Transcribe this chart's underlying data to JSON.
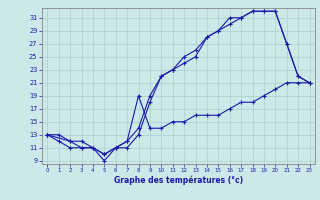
{
  "xlabel": "Graphe des températures (°c)",
  "background_color": "#cce8e8",
  "line_color": "#1a1aaa",
  "xlim": [
    -0.5,
    23.5
  ],
  "ylim": [
    8.5,
    32.5
  ],
  "xticks": [
    0,
    1,
    2,
    3,
    4,
    5,
    6,
    7,
    8,
    9,
    10,
    11,
    12,
    13,
    14,
    15,
    16,
    17,
    18,
    19,
    20,
    21,
    22,
    23
  ],
  "yticks": [
    9,
    11,
    13,
    15,
    17,
    19,
    21,
    23,
    25,
    27,
    29,
    31
  ],
  "line1_x": [
    0,
    1,
    2,
    3,
    4,
    5,
    6,
    7,
    8,
    9,
    10,
    11,
    12,
    13,
    14,
    15,
    16,
    17,
    18,
    19,
    20,
    21,
    22,
    23
  ],
  "line1_y": [
    13,
    13,
    12,
    12,
    11,
    10,
    11,
    12,
    14,
    19,
    22,
    23,
    25,
    26,
    28,
    29,
    30,
    31,
    32,
    32,
    32,
    27,
    22,
    21
  ],
  "line2_x": [
    0,
    1,
    2,
    3,
    4,
    5,
    6,
    7,
    8,
    9,
    10,
    11,
    12,
    13,
    14,
    15,
    16,
    17,
    18,
    19,
    20,
    21,
    22,
    23
  ],
  "line2_y": [
    13,
    12,
    11,
    11,
    11,
    9,
    11,
    11,
    13,
    18,
    22,
    23,
    24,
    25,
    28,
    29,
    31,
    31,
    32,
    32,
    32,
    27,
    22,
    21
  ],
  "line3_x": [
    0,
    2,
    3,
    4,
    5,
    6,
    7,
    8,
    9,
    10,
    11,
    12,
    13,
    14,
    15,
    16,
    17,
    18,
    19,
    20,
    21,
    22,
    23
  ],
  "line3_y": [
    13,
    12,
    11,
    11,
    10,
    11,
    12,
    19,
    14,
    14,
    15,
    15,
    16,
    16,
    16,
    17,
    18,
    18,
    19,
    20,
    21,
    21,
    21
  ],
  "grid_color": "#a8d0d0"
}
